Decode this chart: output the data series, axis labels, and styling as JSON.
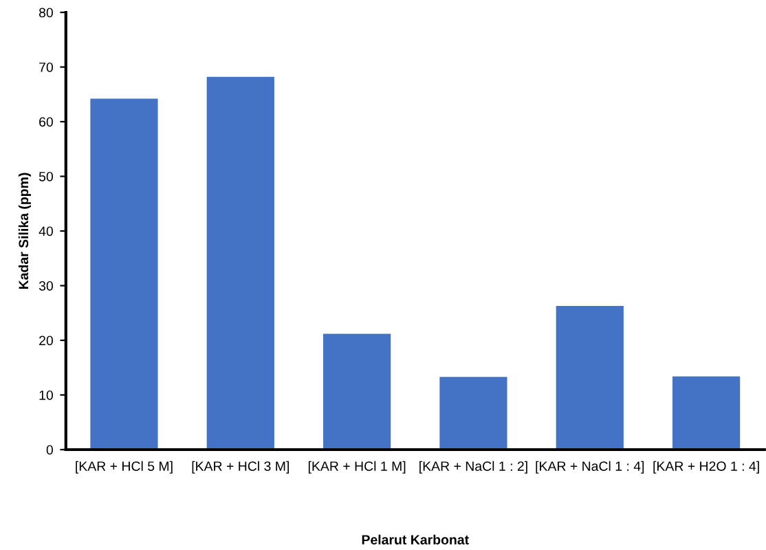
{
  "chart_data": {
    "type": "bar",
    "xlabel": "Pelarut Karbonat",
    "ylabel": "Kadar Silika (ppm)",
    "categories": [
      "[KAR + HCl 5 M]",
      "[KAR + HCl 3 M]",
      "[KAR + HCl 1 M]",
      "[KAR + NaCl 1 : 2]",
      "[KAR + NaCl 1 : 4]",
      "[KAR + H2O 1 : 4]"
    ],
    "values": [
      64.2,
      68.2,
      21.2,
      13.3,
      26.3,
      13.4
    ],
    "color": "#4472c4",
    "ylim": [
      0,
      80
    ],
    "yticks": [
      0,
      10,
      20,
      30,
      40,
      50,
      60,
      70,
      80
    ],
    "grid": false,
    "legend": false
  }
}
